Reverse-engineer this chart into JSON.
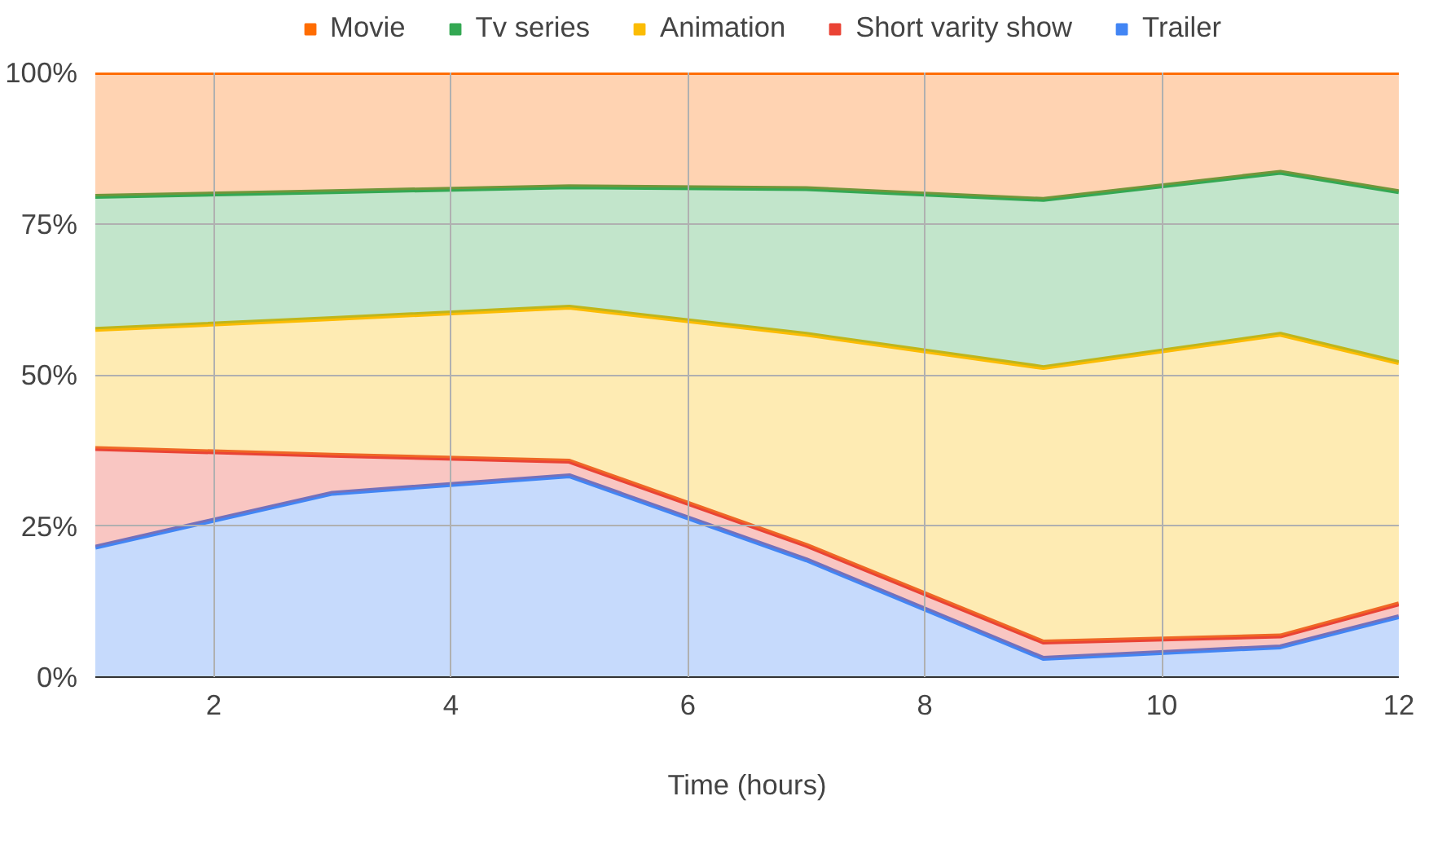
{
  "chart_data": {
    "type": "area",
    "stacked": true,
    "xlabel": "Time (hours)",
    "x": [
      1,
      3,
      5,
      7,
      9,
      11,
      12
    ],
    "series": [
      {
        "name": "Trailer",
        "color": "#4285f4",
        "values": [
          21.5,
          30.4,
          33.3,
          19.4,
          3.1,
          5.0,
          10.0
        ]
      },
      {
        "name": "Short varity show",
        "color": "#ea4335",
        "values": [
          16.3,
          6.3,
          2.4,
          2.4,
          2.7,
          1.8,
          2.1
        ]
      },
      {
        "name": "Animation",
        "color": "#fbbc04",
        "values": [
          19.7,
          22.6,
          25.5,
          34.9,
          45.4,
          49.9,
          39.9
        ]
      },
      {
        "name": "Tv series",
        "color": "#34a853",
        "values": [
          22.0,
          21.0,
          19.9,
          24.1,
          27.8,
          26.8,
          28.3
        ]
      },
      {
        "name": "Movie",
        "color": "#ff6d01",
        "values": [
          20.5,
          19.7,
          18.9,
          19.2,
          21.0,
          16.5,
          19.7
        ]
      }
    ],
    "xlim": [
      1,
      12
    ],
    "xticks": [
      2,
      4,
      6,
      8,
      10,
      12
    ],
    "ylim": [
      0,
      100
    ],
    "yticks": [
      {
        "value": 0,
        "label": "0%"
      },
      {
        "value": 25,
        "label": "25%"
      },
      {
        "value": 50,
        "label": "50%"
      },
      {
        "value": 75,
        "label": "75%"
      },
      {
        "value": 100,
        "label": "100%"
      }
    ],
    "grid": true,
    "legend": "top"
  }
}
